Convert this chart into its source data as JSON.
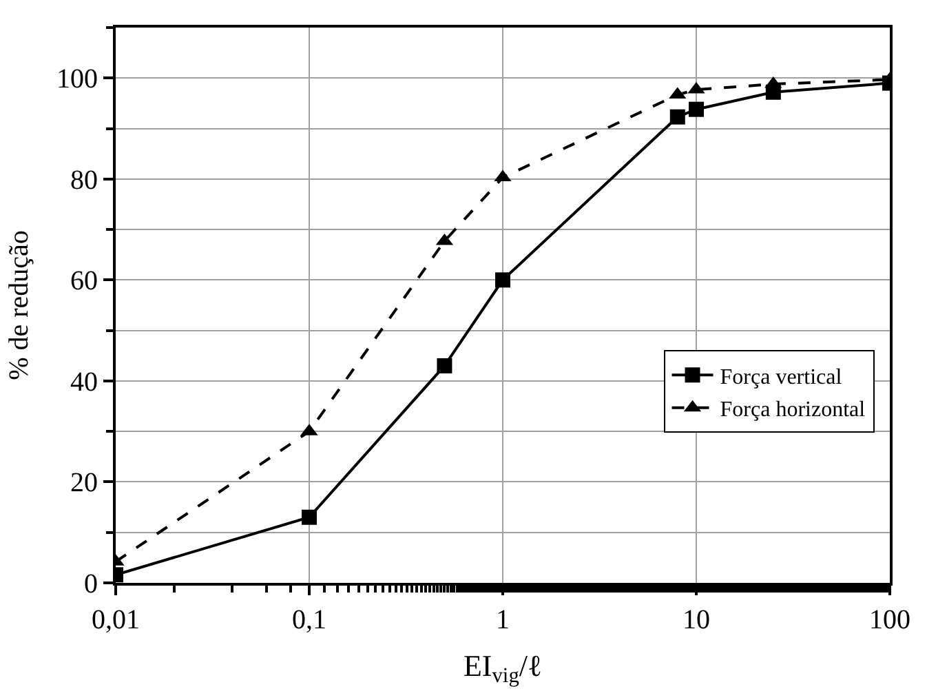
{
  "chart_data": {
    "type": "line",
    "xlabel": "EI$_{vig}$/ℓ",
    "ylabel": "% de redução",
    "x": [
      0.01,
      0.1,
      0.5,
      1,
      8,
      10,
      25,
      100
    ],
    "series": [
      {
        "name": "Força vertical",
        "color": "#000000",
        "values": [
          1.6,
          13,
          43,
          60,
          92.3,
          93.8,
          97.2,
          99
        ],
        "marker": "square",
        "line_style": "solid"
      },
      {
        "name": "Força horizontal",
        "color": "#000000",
        "values": [
          4.2,
          30,
          67.7,
          80.3,
          96.7,
          97.7,
          98.8,
          99.7
        ],
        "marker": "triangle",
        "line_style": "dashed"
      }
    ],
    "log": "x",
    "xlim": [
      0.01,
      100
    ],
    "xticks": [
      {
        "value": 0.01,
        "label": "0,01"
      },
      {
        "value": 0.1,
        "label": "0,1"
      },
      1,
      10,
      100
    ],
    "ylim": [
      0,
      110
    ],
    "yticks": [
      0,
      20,
      40,
      60,
      80,
      100
    ],
    "grid": true,
    "legend": "bottom right"
  }
}
